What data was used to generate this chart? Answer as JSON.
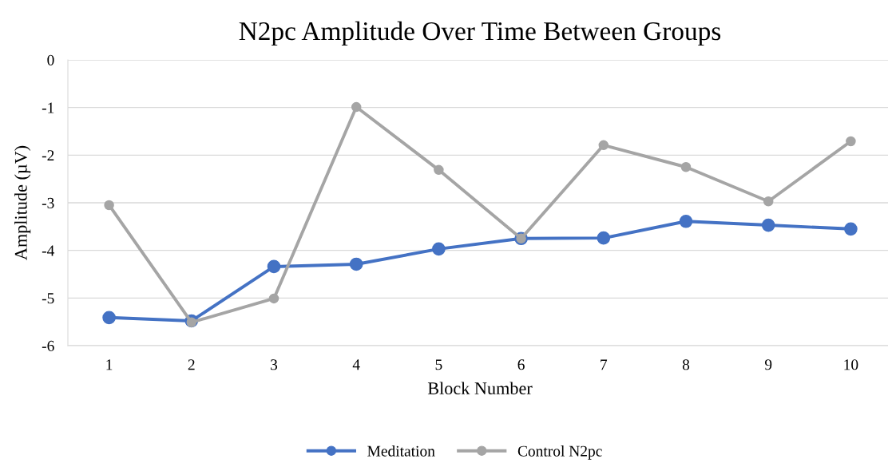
{
  "chart_data": {
    "type": "line",
    "title": "N2pc Amplitude Over Time Between Groups",
    "xlabel": "Block Number",
    "ylabel": "Amplitude (µV)",
    "categories": [
      "1",
      "2",
      "3",
      "4",
      "5",
      "6",
      "7",
      "8",
      "9",
      "10"
    ],
    "series": [
      {
        "name": "Meditation",
        "color": "#4472c4",
        "values": [
          -5.41,
          -5.48,
          -4.34,
          -4.29,
          -3.97,
          -3.75,
          -3.74,
          -3.39,
          -3.47,
          -3.55
        ]
      },
      {
        "name": "Control N2pc",
        "color": "#a5a5a5",
        "values": [
          -3.05,
          -5.51,
          -5.01,
          -0.99,
          -2.31,
          -3.75,
          -1.79,
          -2.25,
          -2.97,
          -1.71
        ]
      }
    ],
    "ylim": [
      -6,
      0
    ],
    "yticks": [
      -6,
      -5,
      -4,
      -3,
      -2,
      -1,
      0
    ],
    "grid": "y",
    "legend": "bottom",
    "marker": "circle",
    "line_style": "solid"
  }
}
